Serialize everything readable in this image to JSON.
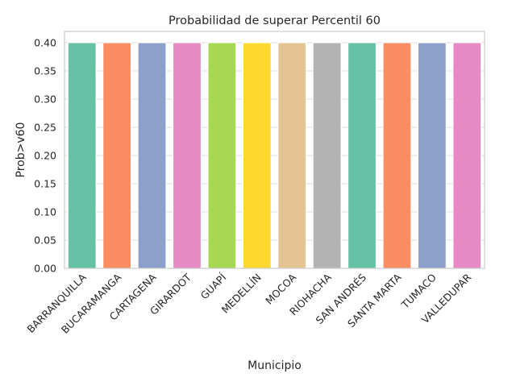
{
  "chart_data": {
    "type": "bar",
    "title": "Probabilidad de superar Percentil 60",
    "xlabel": "Municipio",
    "ylabel": "Prob>v60",
    "categories": [
      "BARRANQUILLA",
      "BUCARAMANGA",
      "CARTAGENA",
      "GIRARDOT",
      "GUAPÍ",
      "MEDELLÍN",
      "MOCOA",
      "RIOHACHA",
      "SAN ANDRÉS",
      "SANTA MARTA",
      "TUMACO",
      "VALLEDUPAR"
    ],
    "values": [
      0.4,
      0.4,
      0.4,
      0.4,
      0.4,
      0.4,
      0.4,
      0.4,
      0.4,
      0.4,
      0.4,
      0.4
    ],
    "colors": [
      "#66c2a5",
      "#fc8d62",
      "#8da0cb",
      "#e78ac3",
      "#a6d854",
      "#ffd92f",
      "#e5c494",
      "#b3b3b3",
      "#66c2a5",
      "#fc8d62",
      "#8da0cb",
      "#e78ac3"
    ],
    "ylim": [
      0,
      0.42
    ],
    "yticks": [
      "0.00",
      "0.05",
      "0.10",
      "0.15",
      "0.20",
      "0.25",
      "0.30",
      "0.35",
      "0.40"
    ],
    "ytick_values": [
      0,
      0.05,
      0.1,
      0.15,
      0.2,
      0.25,
      0.3,
      0.35,
      0.4
    ],
    "grid": "horizontal",
    "legend": "none"
  }
}
